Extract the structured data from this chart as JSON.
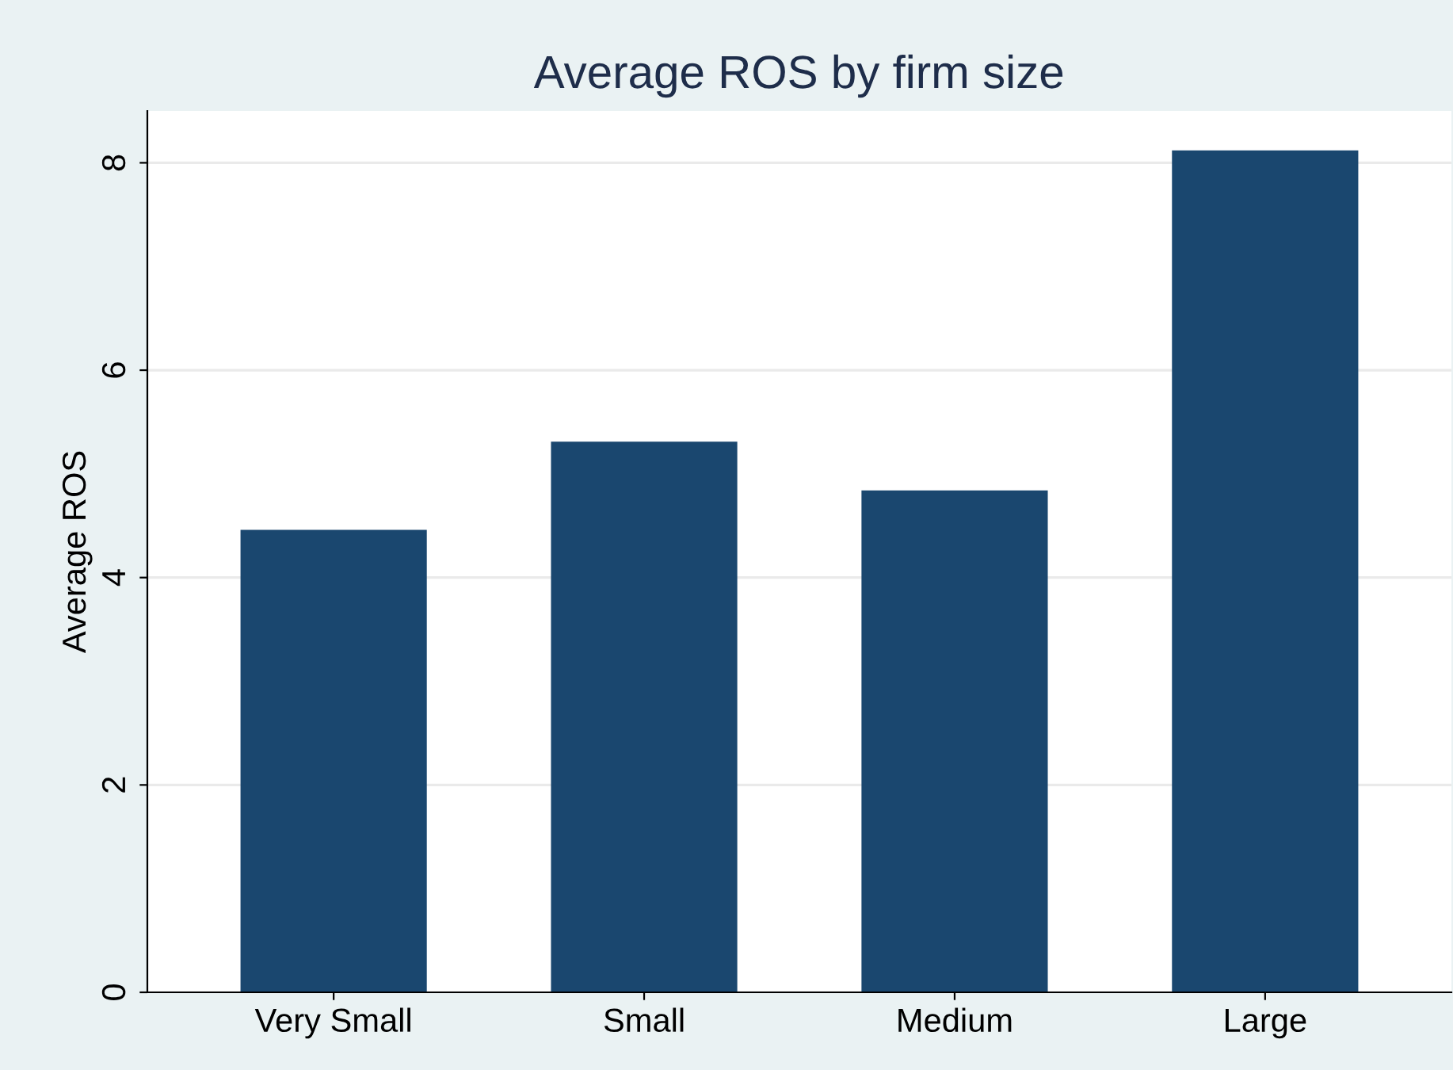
{
  "chart_data": {
    "type": "bar",
    "title": "Average ROS by firm size",
    "ylabel": "Average ROS",
    "categories": [
      "Very Small",
      "Small",
      "Medium",
      "Large"
    ],
    "values": [
      4.46,
      5.31,
      4.84,
      8.12
    ],
    "color": "#1a476f",
    "ylim": [
      0,
      8.5
    ],
    "yticks": [
      0,
      2,
      4,
      6,
      8
    ],
    "grid": "y"
  }
}
